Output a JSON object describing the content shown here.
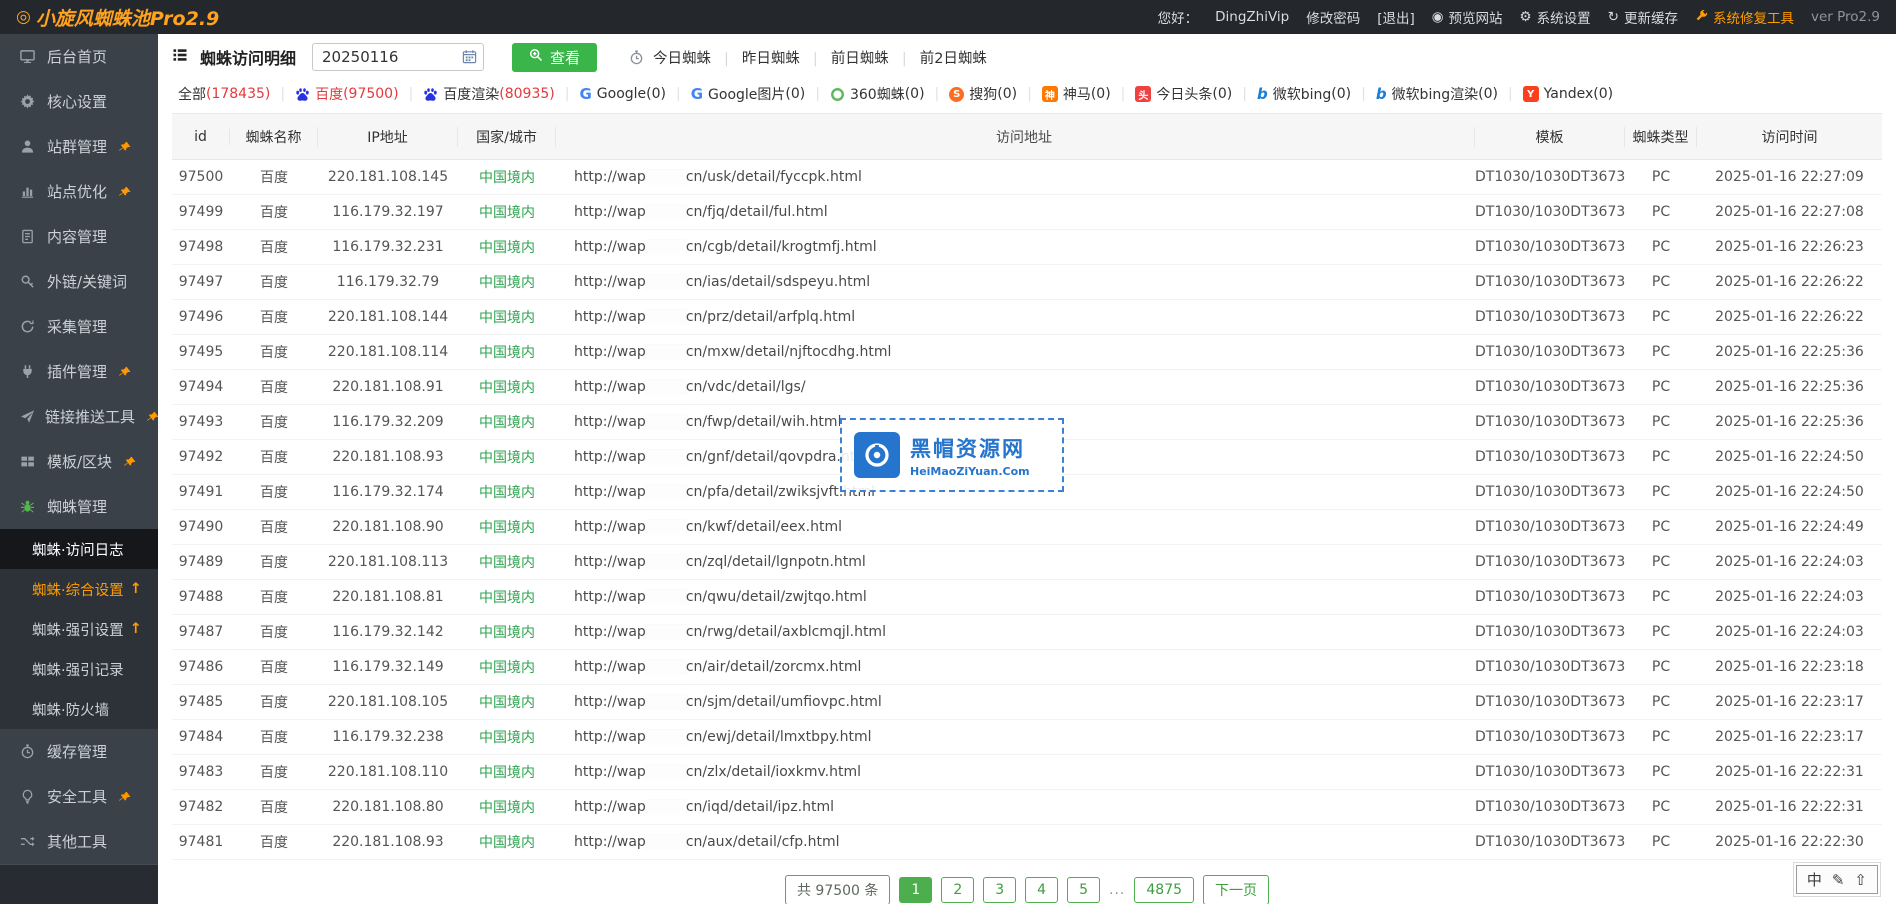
{
  "topbar": {
    "title": "小旋风蜘蛛池Pro2.9",
    "greeting_label": "您好：",
    "username": "DingZhiVip",
    "change_password": "修改密码",
    "logout": "[退出]",
    "preview_site": "预览网站",
    "system_settings": "系统设置",
    "update_cache": "更新缓存",
    "repair_tool": "系统修复工具",
    "version": "ver Pro2.9"
  },
  "colors": {
    "accent_green": "#39b54a",
    "brand_orange": "#ffa21d",
    "alert_red": "#e4393c",
    "baidu_blue": "#2932e1",
    "watermark_blue": "#2574cd",
    "region_green": "#2ea44f"
  },
  "sidebar": {
    "items": [
      {
        "label": "后台首页",
        "icon": "monitor"
      },
      {
        "label": "核心设置",
        "icon": "gear"
      },
      {
        "label": "站群管理",
        "icon": "user",
        "pinned": true
      },
      {
        "label": "站点优化",
        "icon": "chart",
        "pinned": true
      },
      {
        "label": "内容管理",
        "icon": "doc"
      },
      {
        "label": "外链/关键词",
        "icon": "key"
      },
      {
        "label": "采集管理",
        "icon": "refresh"
      },
      {
        "label": "插件管理",
        "icon": "plug",
        "pinned": true
      },
      {
        "label": "链接推送工具",
        "icon": "send",
        "pinned": true
      },
      {
        "label": "模板/区块",
        "icon": "blocks",
        "pinned": true
      },
      {
        "label": "蜘蛛管理",
        "icon": "spider",
        "green": true
      }
    ],
    "submenu": [
      {
        "label": "蜘蛛·访问日志",
        "active": true
      },
      {
        "label": "蜘蛛·综合设置",
        "orange": true,
        "arrow": true
      },
      {
        "label": "蜘蛛·强引设置",
        "arrow": true
      },
      {
        "label": "蜘蛛·强引记录"
      },
      {
        "label": "蜘蛛·防火墙"
      }
    ],
    "items_bottom": [
      {
        "label": "缓存管理",
        "icon": "timer"
      },
      {
        "label": "安全工具",
        "icon": "bulb",
        "pinned": true
      },
      {
        "label": "其他工具",
        "icon": "shuffle"
      }
    ]
  },
  "toolbar": {
    "page_title": "蜘蛛访问明细",
    "date_value": "20250116",
    "view_button": "查看",
    "quick_links": [
      "今日蜘蛛",
      "昨日蜘蛛",
      "前日蜘蛛",
      "前2日蜘蛛"
    ]
  },
  "filters": [
    {
      "label": "全部",
      "count": "(178435)",
      "count_red": true
    },
    {
      "label": "百度",
      "count": "(97500)",
      "icon": "baidu",
      "selected": true
    },
    {
      "label": "百度渲染",
      "count": "(80935)",
      "icon": "baidu",
      "count_red": true
    },
    {
      "label": "Google",
      "count": "(0)",
      "icon": "google"
    },
    {
      "label": "Google图片",
      "count": "(0)",
      "icon": "google"
    },
    {
      "label": "360蜘蛛",
      "count": "(0)",
      "icon": "s360"
    },
    {
      "label": "搜狗",
      "count": "(0)",
      "icon": "sogou"
    },
    {
      "label": "神马",
      "count": "(0)",
      "icon": "shenma"
    },
    {
      "label": "今日头条",
      "count": "(0)",
      "icon": "toutiao"
    },
    {
      "label": "微软bing",
      "count": "(0)",
      "icon": "bing"
    },
    {
      "label": "微软bing渲染",
      "count": "(0)",
      "icon": "bing"
    },
    {
      "label": "Yandex",
      "count": "(0)",
      "icon": "yandex"
    }
  ],
  "table": {
    "headers": [
      "id",
      "蜘蛛名称",
      "IP地址",
      "国家/城市",
      "访问地址",
      "模板",
      "蜘蛛类型",
      "访问时间"
    ],
    "url_prefix": "http://wap",
    "rows": [
      {
        "id": "97500",
        "name": "百度",
        "ip": "220.181.108.145",
        "region": "中国境内",
        "path": "cn/usk/detail/fyccpk.html",
        "template": "DT1030/1030DT3673",
        "type": "PC",
        "time": "2025-01-16 22:27:09"
      },
      {
        "id": "97499",
        "name": "百度",
        "ip": "116.179.32.197",
        "region": "中国境内",
        "path": "cn/fjq/detail/ful.html",
        "template": "DT1030/1030DT3673",
        "type": "PC",
        "time": "2025-01-16 22:27:08"
      },
      {
        "id": "97498",
        "name": "百度",
        "ip": "116.179.32.231",
        "region": "中国境内",
        "path": "cn/cgb/detail/krogtmfj.html",
        "template": "DT1030/1030DT3673",
        "type": "PC",
        "time": "2025-01-16 22:26:23"
      },
      {
        "id": "97497",
        "name": "百度",
        "ip": "116.179.32.79",
        "region": "中国境内",
        "path": "cn/ias/detail/sdspeyu.html",
        "template": "DT1030/1030DT3673",
        "type": "PC",
        "time": "2025-01-16 22:26:22"
      },
      {
        "id": "97496",
        "name": "百度",
        "ip": "220.181.108.144",
        "region": "中国境内",
        "path": "cn/prz/detail/arfplq.html",
        "template": "DT1030/1030DT3673",
        "type": "PC",
        "time": "2025-01-16 22:26:22"
      },
      {
        "id": "97495",
        "name": "百度",
        "ip": "220.181.108.114",
        "region": "中国境内",
        "path": "cn/mxw/detail/njftocdhg.html",
        "template": "DT1030/1030DT3673",
        "type": "PC",
        "time": "2025-01-16 22:25:36"
      },
      {
        "id": "97494",
        "name": "百度",
        "ip": "220.181.108.91",
        "region": "中国境内",
        "path": "cn/vdc/detail/lgs/",
        "template": "DT1030/1030DT3673",
        "type": "PC",
        "time": "2025-01-16 22:25:36"
      },
      {
        "id": "97493",
        "name": "百度",
        "ip": "116.179.32.209",
        "region": "中国境内",
        "path": "cn/fwp/detail/wih.html",
        "template": "DT1030/1030DT3673",
        "type": "PC",
        "time": "2025-01-16 22:25:36"
      },
      {
        "id": "97492",
        "name": "百度",
        "ip": "220.181.108.93",
        "region": "中国境内",
        "path": "cn/gnf/detail/qovpdra.html",
        "template": "DT1030/1030DT3673",
        "type": "PC",
        "time": "2025-01-16 22:24:50"
      },
      {
        "id": "97491",
        "name": "百度",
        "ip": "116.179.32.174",
        "region": "中国境内",
        "path": "cn/pfa/detail/zwiksjvft.html",
        "template": "DT1030/1030DT3673",
        "type": "PC",
        "time": "2025-01-16 22:24:50"
      },
      {
        "id": "97490",
        "name": "百度",
        "ip": "220.181.108.90",
        "region": "中国境内",
        "path": "cn/kwf/detail/eex.html",
        "template": "DT1030/1030DT3673",
        "type": "PC",
        "time": "2025-01-16 22:24:49"
      },
      {
        "id": "97489",
        "name": "百度",
        "ip": "220.181.108.113",
        "region": "中国境内",
        "path": "cn/zql/detail/lgnpotn.html",
        "template": "DT1030/1030DT3673",
        "type": "PC",
        "time": "2025-01-16 22:24:03"
      },
      {
        "id": "97488",
        "name": "百度",
        "ip": "220.181.108.81",
        "region": "中国境内",
        "path": "cn/qwu/detail/zwjtqo.html",
        "template": "DT1030/1030DT3673",
        "type": "PC",
        "time": "2025-01-16 22:24:03"
      },
      {
        "id": "97487",
        "name": "百度",
        "ip": "116.179.32.142",
        "region": "中国境内",
        "path": "cn/rwg/detail/axblcmqjl.html",
        "template": "DT1030/1030DT3673",
        "type": "PC",
        "time": "2025-01-16 22:24:03"
      },
      {
        "id": "97486",
        "name": "百度",
        "ip": "116.179.32.149",
        "region": "中国境内",
        "path": "cn/air/detail/zorcmx.html",
        "template": "DT1030/1030DT3673",
        "type": "PC",
        "time": "2025-01-16 22:23:18"
      },
      {
        "id": "97485",
        "name": "百度",
        "ip": "220.181.108.105",
        "region": "中国境内",
        "path": "cn/sjm/detail/umfiovpc.html",
        "template": "DT1030/1030DT3673",
        "type": "PC",
        "time": "2025-01-16 22:23:17"
      },
      {
        "id": "97484",
        "name": "百度",
        "ip": "116.179.32.238",
        "region": "中国境内",
        "path": "cn/ewj/detail/lmxtbpy.html",
        "template": "DT1030/1030DT3673",
        "type": "PC",
        "time": "2025-01-16 22:23:17"
      },
      {
        "id": "97483",
        "name": "百度",
        "ip": "220.181.108.110",
        "region": "中国境内",
        "path": "cn/zlx/detail/ioxkmv.html",
        "template": "DT1030/1030DT3673",
        "type": "PC",
        "time": "2025-01-16 22:22:31"
      },
      {
        "id": "97482",
        "name": "百度",
        "ip": "220.181.108.80",
        "region": "中国境内",
        "path": "cn/iqd/detail/ipz.html",
        "template": "DT1030/1030DT3673",
        "type": "PC",
        "time": "2025-01-16 22:22:31"
      },
      {
        "id": "97481",
        "name": "百度",
        "ip": "220.181.108.93",
        "region": "中国境内",
        "path": "cn/aux/detail/cfp.html",
        "template": "DT1030/1030DT3673",
        "type": "PC",
        "time": "2025-01-16 22:22:30"
      }
    ]
  },
  "pagination": {
    "total": "共 97500 条",
    "pages": [
      {
        "label": "1",
        "active": true
      },
      {
        "label": "2"
      },
      {
        "label": "3"
      },
      {
        "label": "4"
      },
      {
        "label": "5"
      }
    ],
    "ellipsis": "...",
    "last_page": "4875",
    "next": "下一页"
  },
  "watermark": {
    "title": "黑帽资源网",
    "subtitle": "HeiMaoZiYuan.Com"
  },
  "ime": {
    "lang": "中",
    "pen_icon": "✎",
    "shift_icon": "⇧"
  }
}
